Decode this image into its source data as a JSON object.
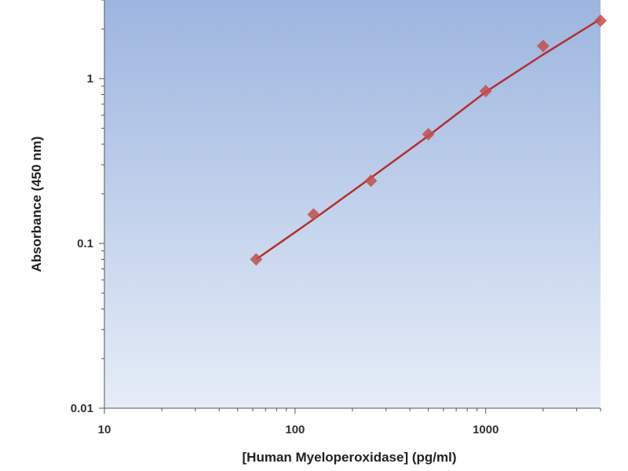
{
  "chart_data": {
    "type": "scatter",
    "xlabel": "[Human Myeloperoxidase] (pg/ml)",
    "ylabel": "Absorbance (450 nm)",
    "x_scale": "log",
    "y_scale": "log",
    "xlim": [
      10,
      4000
    ],
    "ylim": [
      0.01,
      3
    ],
    "x_ticks": [
      10,
      100,
      1000
    ],
    "x_tick_labels": [
      "10",
      "100",
      "1000"
    ],
    "y_ticks": [
      0.01,
      0.1,
      1
    ],
    "y_tick_labels": [
      "0.01",
      "0.1",
      "1"
    ],
    "grid": false,
    "legend": "none",
    "series": [
      {
        "x": [
          62.5,
          125,
          250,
          500,
          1000,
          2000,
          4000
        ],
        "y": [
          0.08,
          0.15,
          0.24,
          0.46,
          0.84,
          1.58,
          2.25
        ],
        "marker": "diamond",
        "color": "#c0504d"
      }
    ],
    "fit_line": {
      "x": [
        62.5,
        125,
        250,
        500,
        1000,
        2000,
        4000
      ],
      "y": [
        0.08,
        0.14,
        0.25,
        0.45,
        0.83,
        1.4,
        2.3
      ],
      "color": "#c0504d"
    },
    "colors": {
      "plot_bg_top": "#9db5df",
      "plot_bg_bottom": "#e6edf8",
      "marker": "#c0504d",
      "line": "#b23030"
    }
  }
}
